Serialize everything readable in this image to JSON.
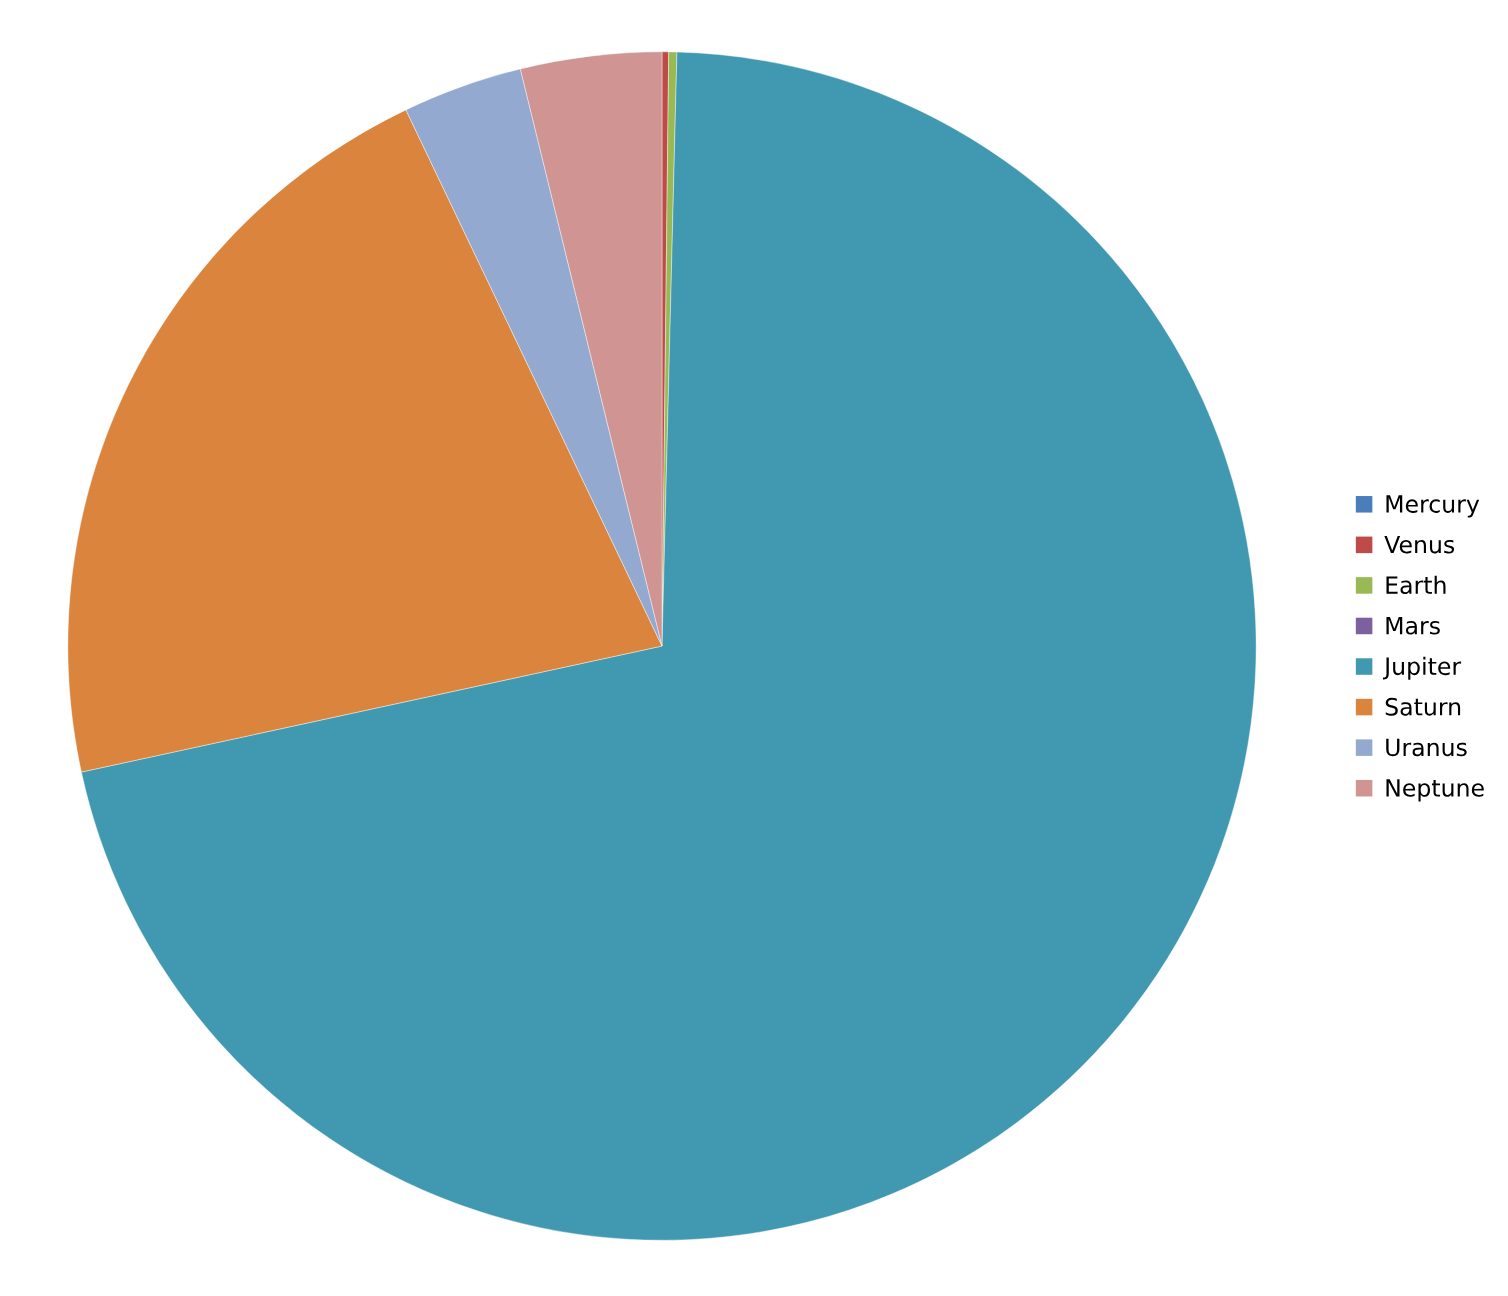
{
  "chart_data": {
    "type": "pie",
    "categories": [
      "Mercury",
      "Venus",
      "Earth",
      "Mars",
      "Jupiter",
      "Saturn",
      "Uranus",
      "Neptune"
    ],
    "values": [
      null,
      0.18,
      0.22,
      null,
      71.17,
      21.3,
      3.26,
      3.83
    ],
    "colors": [
      "#4a7ebb",
      "#be4b48",
      "#98b954",
      "#7d60a0",
      "#4099b0",
      "#db843d",
      "#93a9cf",
      "#d09493"
    ],
    "legend": "right"
  }
}
